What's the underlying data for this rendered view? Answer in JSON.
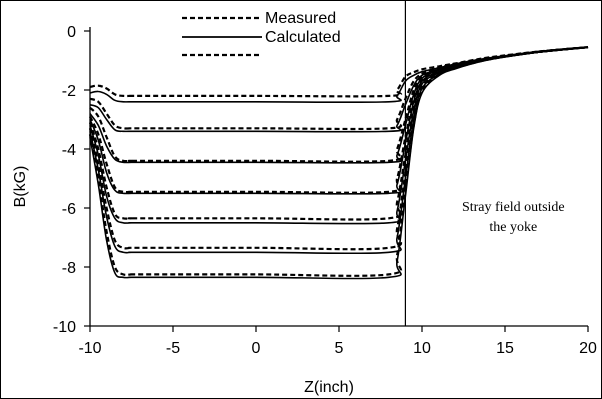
{
  "chart_data": {
    "type": "line",
    "title": "",
    "xlabel": "Z(inch)",
    "ylabel": "B(kG)",
    "xlim": [
      -10,
      20
    ],
    "ylim": [
      -10,
      0
    ],
    "x_ticks": [
      "-10",
      "-5",
      "0",
      "5",
      "10",
      "15",
      "20"
    ],
    "y_ticks": [
      "0",
      "-2",
      "-4",
      "-6",
      "-8",
      "-10"
    ],
    "grid": false,
    "legend_position": "top-center",
    "legend": [
      {
        "label": "Measured",
        "style": "dashed"
      },
      {
        "label": "Calculated",
        "style": "solid"
      },
      {
        "label": "",
        "style": "dashed"
      }
    ],
    "annotation": {
      "line1": "Stray field outside",
      "line2": "the yoke",
      "x": 15.5,
      "y": -6.1
    },
    "yoke_boundary_x": 9,
    "plateau_levels": {
      "calculated": [
        -2.4,
        -3.4,
        -4.45,
        -5.5,
        -6.5,
        -7.5,
        -8.35
      ],
      "measured": [
        -2.2,
        -3.3,
        -4.4,
        -5.45,
        -6.35,
        -7.35,
        -8.25
      ]
    },
    "series": [
      {
        "name": "Measured",
        "style": "dashed",
        "x": [
          -10,
          -9.5,
          -9,
          -8.5,
          -8,
          -7.5,
          -7,
          0,
          8,
          8.5,
          9,
          9.5,
          10,
          11,
          12,
          14,
          17,
          20
        ],
        "y": [
          -1.9,
          -1.85,
          -1.95,
          -2.15,
          -2.2,
          -2.2,
          -2.2,
          -2.2,
          -2.2,
          -2.0,
          -1.55,
          -1.4,
          -1.3,
          -1.2,
          -1.1,
          -0.9,
          -0.7,
          -0.55
        ]
      },
      {
        "name": "Calculated",
        "style": "solid",
        "x": [
          -10,
          -9.5,
          -9,
          -8.5,
          -8,
          -7.5,
          -7,
          0,
          8,
          8.5,
          9,
          9.5,
          10,
          11,
          12,
          14,
          17,
          20
        ],
        "y": [
          -2.1,
          -2.05,
          -2.15,
          -2.35,
          -2.4,
          -2.4,
          -2.4,
          -2.4,
          -2.4,
          -2.2,
          -1.7,
          -1.5,
          -1.38,
          -1.25,
          -1.12,
          -0.92,
          -0.72,
          -0.55
        ]
      },
      {
        "name": "Measured",
        "style": "dashed",
        "x": [
          -10,
          -9.5,
          -9,
          -8.5,
          -8,
          -7.5,
          -7,
          0,
          8,
          8.5,
          9,
          9.5,
          10,
          11,
          12,
          14,
          17,
          20
        ],
        "y": [
          -2.3,
          -2.4,
          -2.8,
          -3.2,
          -3.3,
          -3.3,
          -3.3,
          -3.3,
          -3.3,
          -3.0,
          -2.3,
          -1.7,
          -1.45,
          -1.25,
          -1.12,
          -0.92,
          -0.7,
          -0.55
        ]
      },
      {
        "name": "Calculated",
        "style": "solid",
        "x": [
          -10,
          -9.5,
          -9,
          -8.5,
          -8,
          -7.5,
          -7,
          0,
          8,
          8.5,
          9,
          9.5,
          10,
          11,
          12,
          14,
          17,
          20
        ],
        "y": [
          -2.5,
          -2.6,
          -3.0,
          -3.35,
          -3.4,
          -3.4,
          -3.4,
          -3.4,
          -3.4,
          -3.2,
          -2.5,
          -1.85,
          -1.5,
          -1.3,
          -1.15,
          -0.93,
          -0.72,
          -0.55
        ]
      },
      {
        "name": "Measured",
        "style": "dashed",
        "x": [
          -10,
          -9.5,
          -9,
          -8.5,
          -8,
          -7.5,
          -7,
          0,
          8,
          8.5,
          9,
          9.5,
          10,
          11,
          12,
          14,
          17,
          20
        ],
        "y": [
          -2.6,
          -2.9,
          -3.6,
          -4.25,
          -4.4,
          -4.4,
          -4.4,
          -4.4,
          -4.4,
          -4.0,
          -3.0,
          -2.0,
          -1.55,
          -1.3,
          -1.15,
          -0.93,
          -0.71,
          -0.55
        ]
      },
      {
        "name": "Calculated",
        "style": "solid",
        "x": [
          -10,
          -9.5,
          -9,
          -8.5,
          -8,
          -7.5,
          -7,
          0,
          8,
          8.5,
          9,
          9.5,
          10,
          11,
          12,
          14,
          17,
          20
        ],
        "y": [
          -2.8,
          -3.2,
          -3.9,
          -4.35,
          -4.45,
          -4.45,
          -4.45,
          -4.45,
          -4.45,
          -4.2,
          -3.2,
          -2.15,
          -1.6,
          -1.33,
          -1.17,
          -0.94,
          -0.72,
          -0.55
        ]
      },
      {
        "name": "Measured",
        "style": "dashed",
        "x": [
          -10,
          -9.5,
          -9,
          -8.5,
          -8,
          -7.5,
          -7,
          0,
          8,
          8.5,
          9,
          9.5,
          10,
          11,
          12,
          14,
          17,
          20
        ],
        "y": [
          -2.9,
          -3.5,
          -4.5,
          -5.3,
          -5.45,
          -5.45,
          -5.45,
          -5.45,
          -5.45,
          -5.0,
          -3.6,
          -2.3,
          -1.65,
          -1.35,
          -1.17,
          -0.94,
          -0.71,
          -0.55
        ]
      },
      {
        "name": "Calculated",
        "style": "solid",
        "x": [
          -10,
          -9.5,
          -9,
          -8.5,
          -8,
          -7.5,
          -7,
          0,
          8,
          8.5,
          9,
          9.5,
          10,
          11,
          12,
          14,
          17,
          20
        ],
        "y": [
          -3.0,
          -3.7,
          -4.8,
          -5.4,
          -5.5,
          -5.5,
          -5.5,
          -5.5,
          -5.5,
          -5.2,
          -3.8,
          -2.4,
          -1.7,
          -1.38,
          -1.2,
          -0.95,
          -0.72,
          -0.55
        ]
      },
      {
        "name": "Measured",
        "style": "dashed",
        "x": [
          -10,
          -9.5,
          -9,
          -8.5,
          -8,
          -7.5,
          -7,
          0,
          8,
          8.5,
          9,
          9.5,
          10,
          11,
          12,
          14,
          17,
          20
        ],
        "y": [
          -3.1,
          -4.0,
          -5.3,
          -6.2,
          -6.35,
          -6.35,
          -6.35,
          -6.35,
          -6.35,
          -5.8,
          -4.2,
          -2.6,
          -1.75,
          -1.4,
          -1.2,
          -0.95,
          -0.71,
          -0.55
        ]
      },
      {
        "name": "Calculated",
        "style": "solid",
        "x": [
          -10,
          -9.5,
          -9,
          -8.5,
          -8,
          -7.5,
          -7,
          0,
          8,
          8.5,
          9,
          9.5,
          10,
          11,
          12,
          14,
          17,
          20
        ],
        "y": [
          -3.2,
          -4.2,
          -5.6,
          -6.35,
          -6.5,
          -6.5,
          -6.5,
          -6.5,
          -6.5,
          -6.1,
          -4.4,
          -2.7,
          -1.8,
          -1.42,
          -1.22,
          -0.96,
          -0.72,
          -0.55
        ]
      },
      {
        "name": "Measured",
        "style": "dashed",
        "x": [
          -10,
          -9.5,
          -9,
          -8.5,
          -8,
          -7.5,
          -7,
          0,
          8,
          8.5,
          9,
          9.5,
          10,
          11,
          12,
          14,
          17,
          20
        ],
        "y": [
          -3.3,
          -4.5,
          -6.0,
          -7.1,
          -7.35,
          -7.35,
          -7.35,
          -7.35,
          -7.35,
          -6.7,
          -4.8,
          -2.9,
          -1.9,
          -1.45,
          -1.23,
          -0.96,
          -0.71,
          -0.55
        ]
      },
      {
        "name": "Calculated",
        "style": "solid",
        "x": [
          -10,
          -9.5,
          -9,
          -8.5,
          -8,
          -7.5,
          -7,
          0,
          8,
          8.5,
          9,
          9.5,
          10,
          11,
          12,
          14,
          17,
          20
        ],
        "y": [
          -3.4,
          -4.7,
          -6.3,
          -7.3,
          -7.5,
          -7.5,
          -7.5,
          -7.5,
          -7.5,
          -7.0,
          -5.0,
          -3.0,
          -1.95,
          -1.47,
          -1.25,
          -0.97,
          -0.72,
          -0.55
        ]
      },
      {
        "name": "Measured",
        "style": "dashed",
        "x": [
          -10,
          -9.5,
          -9,
          -8.5,
          -8,
          -7.5,
          -7,
          0,
          8,
          8.5,
          9,
          9.5,
          10,
          11,
          12,
          14,
          17,
          20
        ],
        "y": [
          -3.5,
          -5.0,
          -6.8,
          -8.0,
          -8.25,
          -8.25,
          -8.25,
          -8.25,
          -8.25,
          -7.6,
          -5.4,
          -3.2,
          -2.05,
          -1.5,
          -1.26,
          -0.97,
          -0.71,
          -0.55
        ]
      },
      {
        "name": "Calculated",
        "style": "solid",
        "x": [
          -10,
          -9.5,
          -9,
          -8.5,
          -8,
          -7.5,
          -7,
          0,
          8,
          8.5,
          9,
          9.5,
          10,
          11,
          12,
          14,
          17,
          20
        ],
        "y": [
          -3.6,
          -5.2,
          -7.1,
          -8.2,
          -8.35,
          -8.35,
          -8.35,
          -8.35,
          -8.35,
          -7.8,
          -5.6,
          -3.3,
          -2.1,
          -1.52,
          -1.28,
          -0.98,
          -0.72,
          -0.55
        ]
      }
    ]
  }
}
